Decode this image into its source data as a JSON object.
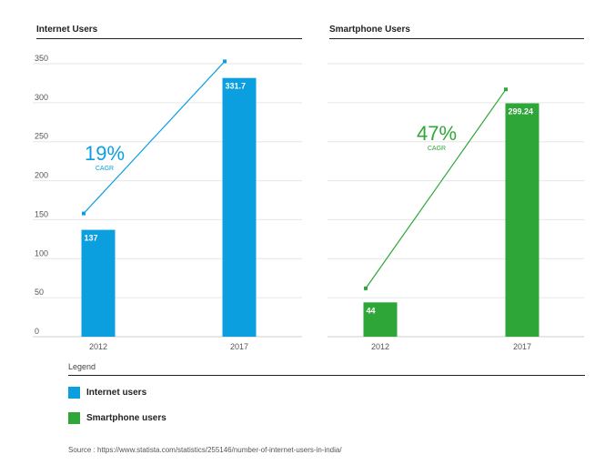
{
  "chart_data": [
    {
      "type": "bar",
      "title": "Internet Users",
      "categories": [
        "2012",
        "2017"
      ],
      "series": [
        {
          "name": "Internet users",
          "values": [
            137,
            331.7
          ]
        }
      ],
      "value_labels": [
        "137",
        "331.7"
      ],
      "ylim": [
        0,
        350
      ],
      "yticks": [
        "0",
        "50",
        "100",
        "150",
        "200",
        "250",
        "300",
        "350"
      ],
      "grid": true,
      "color": "#0b9fe0",
      "trend": {
        "start": 158,
        "end": 353
      },
      "annotation": {
        "value": "19%",
        "label": "CAGR"
      }
    },
    {
      "type": "bar",
      "title": "Smartphone Users",
      "categories": [
        "2012",
        "2017"
      ],
      "series": [
        {
          "name": "Smartphone users",
          "values": [
            44,
            299.24
          ]
        }
      ],
      "value_labels": [
        "44",
        "299.24"
      ],
      "ylim": [
        0,
        350
      ],
      "grid": true,
      "color": "#2ea738",
      "trend": {
        "start": 62,
        "end": 317
      },
      "annotation": {
        "value": "47%",
        "label": "CAGR"
      }
    }
  ],
  "legend": {
    "title": "Legend",
    "items": [
      {
        "label": "Internet users",
        "color": "#0b9fe0"
      },
      {
        "label": "Smartphone users",
        "color": "#2ea738"
      }
    ]
  },
  "source": "Source : https://www.statista.com/statistics/255146/number-of-internet-users-in-india/"
}
